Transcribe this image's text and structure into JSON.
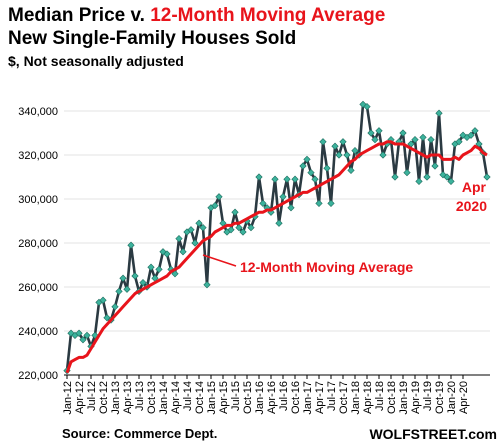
{
  "title": {
    "part1": "Median Price v. ",
    "part2": "12-Month Moving Average",
    "line2": "New Single-Family Houses Sold",
    "line3": "$, Not seasonally adjusted"
  },
  "source": "Source: Commerce Dept.",
  "brand": "WOLFSTREET.com",
  "colors": {
    "median": "#2b3a42",
    "marker": "#3cb29c",
    "average": "#e8141b",
    "grid": "#e3e3e3"
  },
  "chart_data": {
    "type": "line",
    "ylim": [
      220000,
      345000
    ],
    "yticks": [
      220000,
      240000,
      260000,
      280000,
      300000,
      320000,
      340000
    ],
    "ytick_labels": [
      "220,000",
      "240,000",
      "260,000",
      "280,000",
      "300,000",
      "320,000",
      "340,000"
    ],
    "x_labels": [
      "Jan-12",
      "Apr-12",
      "Jul-12",
      "Oct-12",
      "Jan-13",
      "Apr-13",
      "Jul-13",
      "Oct-13",
      "Jan-14",
      "Apr-14",
      "Jul-14",
      "Oct-14",
      "Jan-15",
      "Apr-15",
      "Jul-15",
      "Oct-15",
      "Jan-16",
      "Apr-16",
      "Jul-16",
      "Oct-16",
      "Jan-17",
      "Apr-17",
      "Jul-17",
      "Oct-17",
      "Jan-18",
      "Apr-18",
      "Jul-18",
      "Oct-18",
      "Jan-19",
      "Apr-19",
      "Jul-19",
      "Oct-19",
      "Jan-20",
      "Apr-20"
    ],
    "x_label_every": 3,
    "grid": "horizontal",
    "series": [
      {
        "name": "",
        "kind": "median",
        "values": [
          222000,
          239000,
          238000,
          239000,
          236000,
          238000,
          233000,
          238000,
          253000,
          254000,
          246000,
          245000,
          251000,
          258000,
          264000,
          259000,
          279000,
          265000,
          258000,
          262000,
          260000,
          269000,
          264000,
          268000,
          276000,
          275000,
          268000,
          266000,
          282000,
          276000,
          285000,
          286000,
          280000,
          289000,
          287000,
          261000,
          296000,
          297000,
          301000,
          289000,
          285000,
          286000,
          294000,
          287000,
          285000,
          290000,
          287000,
          292000,
          310000,
          298000,
          296000,
          294000,
          309000,
          289000,
          301000,
          309000,
          296000,
          309000,
          302000,
          315000,
          318000,
          312000,
          309000,
          298000,
          326000,
          314000,
          298000,
          324000,
          320000,
          326000,
          320000,
          313000,
          322000,
          320000,
          343000,
          342000,
          330000,
          327000,
          331000,
          320000,
          325000,
          327000,
          310000,
          326000,
          330000,
          312000,
          325000,
          327000,
          308000,
          328000,
          310000,
          327000,
          315000,
          339000,
          311000,
          310000,
          308000,
          325000,
          326000,
          329000,
          328000,
          329000,
          331000,
          325000,
          321000,
          310000
        ]
      },
      {
        "name": "12-Month Moving Average",
        "kind": "average",
        "values": [
          221000,
          226000,
          227000,
          228000,
          228000,
          229000,
          232000,
          235000,
          238000,
          241000,
          243000,
          245000,
          247000,
          249000,
          251000,
          253000,
          255000,
          257000,
          258000,
          259000,
          260000,
          261000,
          262000,
          263000,
          264000,
          265000,
          267000,
          268000,
          269000,
          271000,
          273000,
          275000,
          277000,
          279000,
          281000,
          282000,
          283000,
          285000,
          286000,
          287000,
          288000,
          288000,
          289000,
          289000,
          290000,
          291000,
          292000,
          293000,
          294000,
          294000,
          295000,
          295000,
          296000,
          297000,
          298000,
          299000,
          300000,
          301000,
          302000,
          303000,
          303000,
          304000,
          305000,
          306000,
          307000,
          308000,
          309000,
          310000,
          311000,
          313000,
          315000,
          317000,
          318000,
          320000,
          321000,
          322000,
          323000,
          324000,
          325000,
          325000,
          326000,
          326000,
          325000,
          325000,
          325000,
          324000,
          323000,
          322000,
          321000,
          320000,
          319000,
          320000,
          320000,
          320000,
          318000,
          318000,
          318000,
          319000,
          318000,
          320000,
          321000,
          322000,
          324000,
          323000,
          321000,
          320000
        ]
      }
    ],
    "annotations": [
      {
        "text": "12-Month Moving Average",
        "color": "#e8141b"
      },
      {
        "line1": "Apr",
        "line2": "2020",
        "color": "#e8141b"
      }
    ]
  }
}
